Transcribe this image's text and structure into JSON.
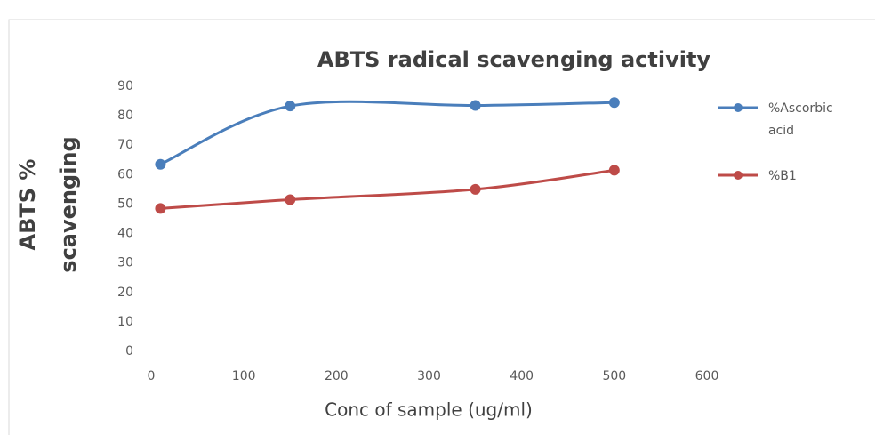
{
  "chart_data": {
    "type": "line",
    "title": "ABTS radical scavenging activity",
    "x_label": "Conc of sample (ug/ml)",
    "y_label": "ABTS % scavenging",
    "x": [
      10,
      150,
      350,
      500
    ],
    "series": [
      {
        "name": "%Ascorbic acid",
        "color": "#4a7ebb",
        "values": [
          63.5,
          83.3,
          83.5,
          84.5
        ]
      },
      {
        "name": "%B1",
        "color": "#be4b48",
        "values": [
          48.5,
          51.5,
          55,
          61.5
        ]
      }
    ],
    "xlim": [
      0,
      600
    ],
    "xticks": [
      0,
      100,
      200,
      300,
      400,
      500,
      600
    ],
    "ylim": [
      0,
      90
    ],
    "yticks": [
      0,
      10,
      20,
      30,
      40,
      50,
      60,
      70,
      80,
      90
    ],
    "smooth": true,
    "grid": false,
    "legend": "right"
  }
}
